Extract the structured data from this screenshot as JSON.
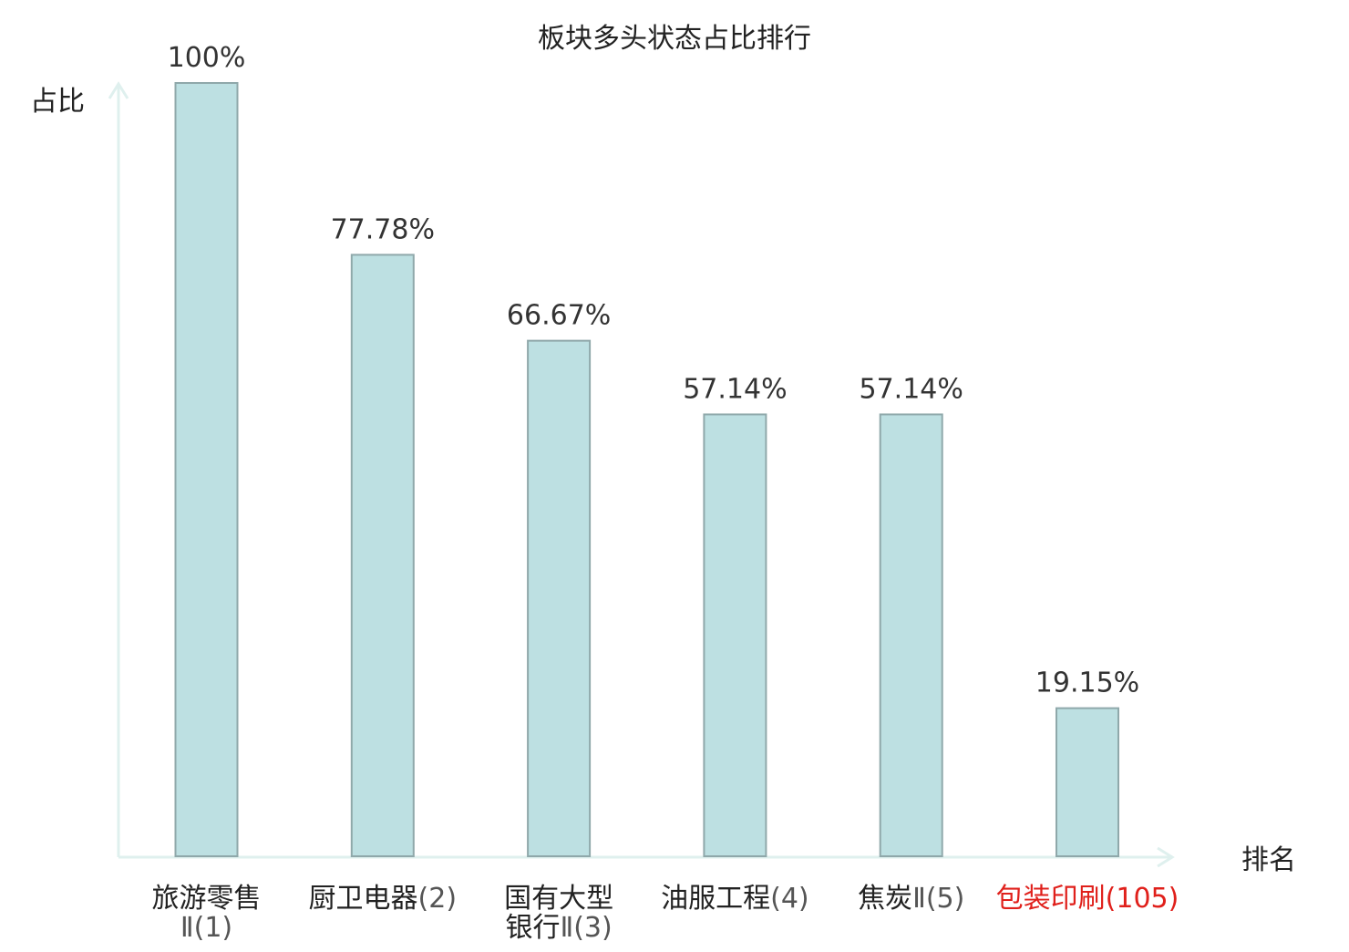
{
  "chart_data": {
    "type": "bar",
    "title": "板块多头状态占比排行",
    "ylabel": "占比",
    "xlabel": "排名",
    "ylim": [
      0,
      100
    ],
    "grid": false,
    "legend": "none",
    "categories": [
      {
        "name": "旅游零售Ⅱ",
        "rank": "(1)"
      },
      {
        "name": "厨卫电器",
        "rank": "(2)"
      },
      {
        "name": "国有大型银行Ⅱ",
        "rank": "(3)"
      },
      {
        "name": "油服工程",
        "rank": "(4)"
      },
      {
        "name": "焦炭Ⅱ",
        "rank": "(5)"
      },
      {
        "name": "包装印刷",
        "rank": "(105)",
        "highlight": true
      }
    ],
    "values": [
      100,
      77.78,
      66.67,
      57.14,
      57.14,
      19.15
    ],
    "data_labels": [
      "100%",
      "77.78%",
      "66.67%",
      "57.14%",
      "57.14%",
      "19.15%"
    ],
    "colors": {
      "bar_fill": "#bde0e2",
      "bar_stroke": "#8fa8aa",
      "axis": "#dff0ee",
      "text": "#333333",
      "title": "#222222",
      "highlight": "#e0201b"
    }
  }
}
